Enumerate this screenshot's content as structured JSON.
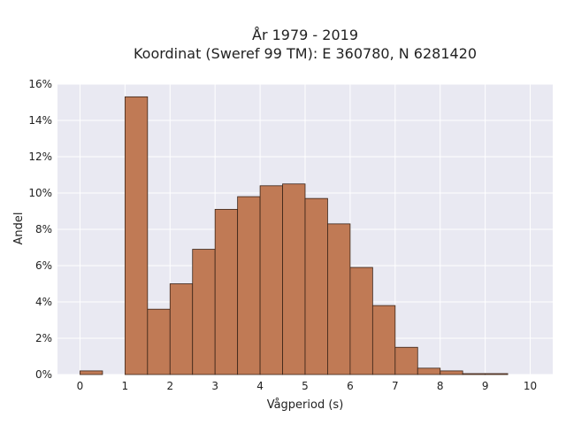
{
  "chart_data": {
    "type": "bar",
    "title_line1": "År 1979 - 2019",
    "title_line2": "Koordinat (Sweref 99 TM): E 360780, N 6281420",
    "xlabel": "Vågperiod (s)",
    "ylabel": "Andel",
    "bin_width": 0.5,
    "bins": [
      {
        "x0": 0.0,
        "value": 0.2
      },
      {
        "x0": 0.5,
        "value": 0.0
      },
      {
        "x0": 1.0,
        "value": 15.3
      },
      {
        "x0": 1.5,
        "value": 3.6
      },
      {
        "x0": 2.0,
        "value": 5.0
      },
      {
        "x0": 2.5,
        "value": 6.9
      },
      {
        "x0": 3.0,
        "value": 9.1
      },
      {
        "x0": 3.5,
        "value": 9.8
      },
      {
        "x0": 4.0,
        "value": 10.4
      },
      {
        "x0": 4.5,
        "value": 10.5
      },
      {
        "x0": 5.0,
        "value": 9.7
      },
      {
        "x0": 5.5,
        "value": 8.3
      },
      {
        "x0": 6.0,
        "value": 5.9
      },
      {
        "x0": 6.5,
        "value": 3.8
      },
      {
        "x0": 7.0,
        "value": 1.5
      },
      {
        "x0": 7.5,
        "value": 0.35
      },
      {
        "x0": 8.0,
        "value": 0.2
      },
      {
        "x0": 8.5,
        "value": 0.05
      },
      {
        "x0": 9.0,
        "value": 0.05
      },
      {
        "x0": 9.5,
        "value": 0.0
      }
    ],
    "xlim": [
      -0.5,
      10.5
    ],
    "ylim": [
      0,
      16
    ],
    "xticks": [
      0,
      1,
      2,
      3,
      4,
      5,
      6,
      7,
      8,
      9,
      10
    ],
    "yticks": [
      0,
      2,
      4,
      6,
      8,
      10,
      12,
      14,
      16
    ],
    "ytick_suffix": "%",
    "grid": true,
    "colors": {
      "bar_fill": "#c07a55",
      "bar_edge": "#3a2418",
      "plot_bg": "#e9e9f2",
      "grid": "#ffffff"
    }
  }
}
